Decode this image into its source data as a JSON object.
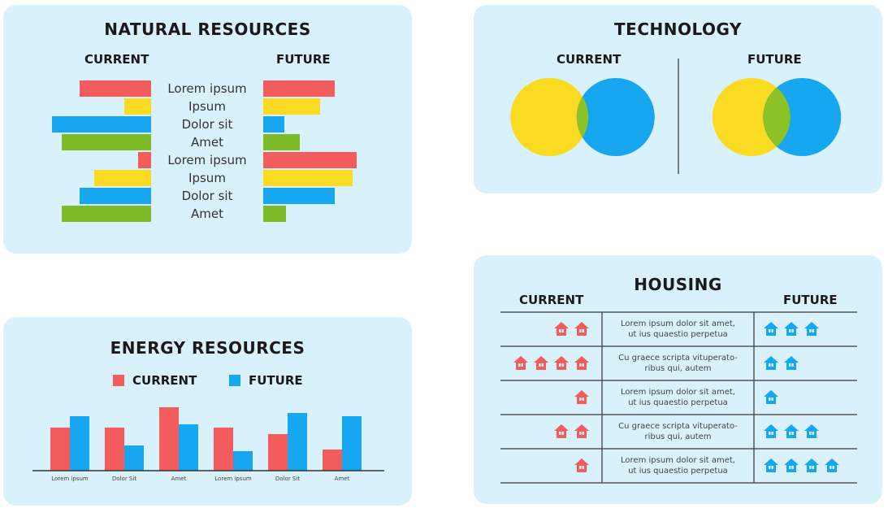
{
  "natural": {
    "title": "NATURAL RESOURCES",
    "current_label": "CURRENT",
    "future_label": "FUTURE"
  },
  "technology": {
    "title": "TECHNOLOGY",
    "current_label": "CURRENT",
    "future_label": "FUTURE"
  },
  "energy": {
    "title": "ENERGY RESOURCES",
    "legend_current": "CURRENT",
    "legend_future": "FUTURE"
  },
  "housing": {
    "title": "HOUSING",
    "current_label": "CURRENT",
    "future_label": "FUTURE"
  },
  "chart_data": [
    {
      "type": "bar",
      "orientation": "horizontal-diverging",
      "title": "NATURAL RESOURCES",
      "categories": [
        "Lorem ipsum",
        "Ipsum",
        "Dolor sit",
        "Amet",
        "Lorem ipsum",
        "Ipsum",
        "Dolor sit",
        "Amet"
      ],
      "colors": [
        "#f25c5c",
        "#fbdb22",
        "#16a7f0",
        "#7dbc28",
        "#f25c5c",
        "#fbdb22",
        "#16a7f0",
        "#7dbc28"
      ],
      "series": [
        {
          "name": "CURRENT",
          "values": [
            88,
            33,
            122,
            110,
            16,
            70,
            88,
            110
          ]
        },
        {
          "name": "FUTURE",
          "values": [
            88,
            70,
            26,
            45,
            115,
            110,
            88,
            28
          ]
        }
      ],
      "xlim": [
        0,
        130
      ]
    },
    {
      "type": "venn",
      "title": "TECHNOLOGY",
      "diagrams": [
        {
          "name": "CURRENT",
          "overlap": 0.15
        },
        {
          "name": "FUTURE",
          "overlap": 0.35
        }
      ],
      "colors": {
        "left": "#fbdb22",
        "right": "#16a7f0",
        "overlap": "#8cc226"
      }
    },
    {
      "type": "bar",
      "title": "ENERGY RESOURCES",
      "categories": [
        "Lorem ipsum",
        "Dolor Sit",
        "Amet",
        "Lorem ipsum",
        "Dolor Sit",
        "Amet"
      ],
      "series": [
        {
          "name": "CURRENT",
          "color": "#f25c5c",
          "values": [
            53,
            53,
            78,
            53,
            45,
            26
          ]
        },
        {
          "name": "FUTURE",
          "color": "#16a7f0",
          "values": [
            67,
            31,
            57,
            24,
            71,
            67
          ]
        }
      ],
      "ylim": [
        0,
        80
      ]
    },
    {
      "type": "table",
      "title": "HOUSING",
      "columns": [
        "CURRENT",
        "",
        "FUTURE"
      ],
      "rows": [
        {
          "current": 2,
          "text": [
            "Lorem ipsum dolor sit amet,",
            "ut ius quaestio perpetua"
          ],
          "future": 3
        },
        {
          "current": 4,
          "text": [
            "Cu graece scripta vituperato-",
            "ribus qui, autem"
          ],
          "future": 2
        },
        {
          "current": 1,
          "text": [
            "Lorem ipsum dolor sit amet,",
            "ut ius quaestio perpetua"
          ],
          "future": 1
        },
        {
          "current": 2,
          "text": [
            "Cu graece scripta vituperato-",
            "ribus qui, autem"
          ],
          "future": 3
        },
        {
          "current": 1,
          "text": [
            "Lorem ipsum dolor sit amet,",
            "ut ius quaestio perpetua"
          ],
          "future": 4
        }
      ],
      "colors": {
        "current": "#f25c5c",
        "future": "#16a7f0"
      },
      "icon": "house-icon"
    }
  ]
}
